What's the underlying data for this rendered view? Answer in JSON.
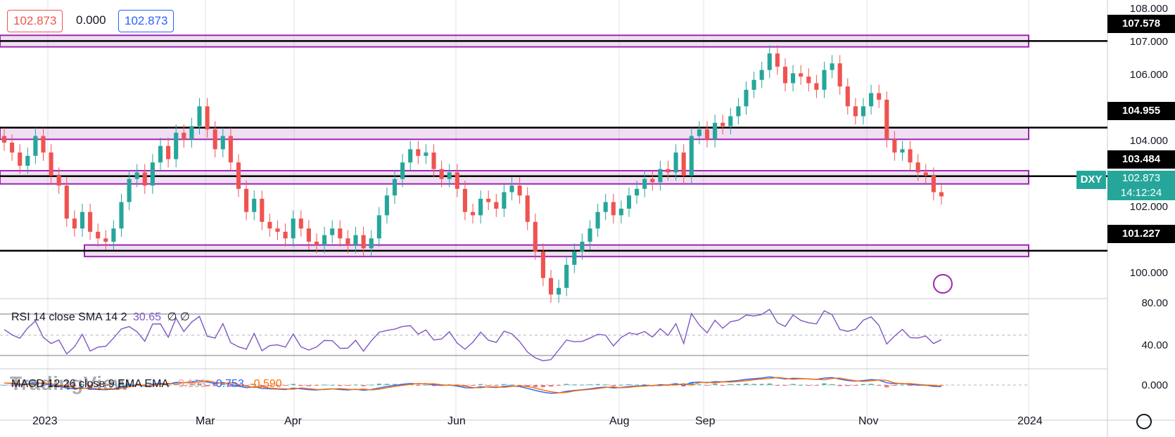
{
  "chart_data": {
    "type": "candlestick",
    "symbol": "DXY",
    "current_price": "102.873",
    "countdown": "14:12:24",
    "ohlc_bar": {
      "sell": "102.873",
      "spread": "0.000",
      "buy": "102.873"
    },
    "y_ticks": [
      "108.000",
      "107.000",
      "106.000",
      "104.000",
      "102.000",
      "100.000"
    ],
    "x_ticks": [
      "2023",
      "Mar",
      "Apr",
      "Jun",
      "Aug",
      "Sep",
      "Nov",
      "2024"
    ],
    "levels": [
      {
        "label": "107.578",
        "value": 107.578
      },
      {
        "label": "104.955",
        "value": 104.955
      },
      {
        "label": "103.484",
        "value": 103.484
      },
      {
        "label": "101.227",
        "value": 101.227
      }
    ],
    "zones": [
      [
        107.4,
        107.75
      ],
      [
        104.6,
        104.95
      ],
      [
        103.25,
        103.65
      ],
      [
        101.05,
        101.4
      ]
    ],
    "close_series": [
      104.5,
      104.2,
      103.8,
      104.1,
      104.7,
      104.2,
      103.5,
      103.2,
      102.2,
      101.9,
      102.4,
      101.8,
      101.6,
      101.5,
      101.9,
      102.7,
      103.4,
      103.6,
      103.2,
      103.9,
      104.4,
      104.0,
      104.8,
      104.6,
      105.0,
      105.6,
      104.9,
      104.3,
      104.7,
      103.9,
      103.1,
      102.4,
      102.8,
      102.1,
      101.9,
      101.8,
      101.6,
      102.2,
      101.9,
      101.5,
      101.4,
      101.7,
      101.9,
      101.6,
      101.4,
      101.7,
      101.3,
      101.6,
      102.3,
      102.9,
      103.4,
      103.9,
      104.3,
      104.1,
      104.2,
      103.7,
      103.4,
      103.6,
      103.1,
      102.4,
      102.3,
      102.8,
      102.7,
      102.5,
      103.0,
      103.2,
      102.9,
      102.1,
      101.2,
      100.4,
      99.9,
      100.1,
      100.8,
      101.2,
      101.5,
      101.9,
      102.4,
      102.7,
      102.3,
      102.5,
      102.9,
      103.1,
      103.4,
      103.3,
      103.7,
      103.6,
      104.2,
      103.5,
      104.7,
      104.9,
      104.6,
      105.1,
      105.0,
      105.3,
      105.6,
      106.1,
      106.4,
      106.7,
      107.2,
      106.8,
      106.3,
      106.6,
      106.5,
      106.3,
      106.1,
      106.7,
      106.9,
      106.2,
      105.6,
      105.3,
      105.6,
      106.0,
      105.8,
      104.6,
      104.2,
      104.3,
      103.9,
      103.6,
      103.5,
      103.0,
      102.873
    ],
    "indicators": {
      "rsi": {
        "label": "RSI 14 close SMA 14 2",
        "value": "30.65",
        "extra": "∅ ∅",
        "ticks": [
          "80.00",
          "40.00"
        ],
        "upper": 70,
        "lower": 30
      },
      "macd": {
        "label": "MACD 12 26 close 9 EMA EMA",
        "hist": "-0.163",
        "macd": "-0.753",
        "signal": "-0.590",
        "ticks": [
          "0.000"
        ]
      }
    }
  },
  "colors": {
    "up": "#26a69a",
    "down": "#ef5350",
    "zone": "#9c27b0",
    "rsi": "#7e57c2",
    "macd": "#2962ff",
    "signal": "#ff6d00",
    "sell": "#ef5350",
    "buy": "#2962ff"
  },
  "watermark": "TradingView"
}
